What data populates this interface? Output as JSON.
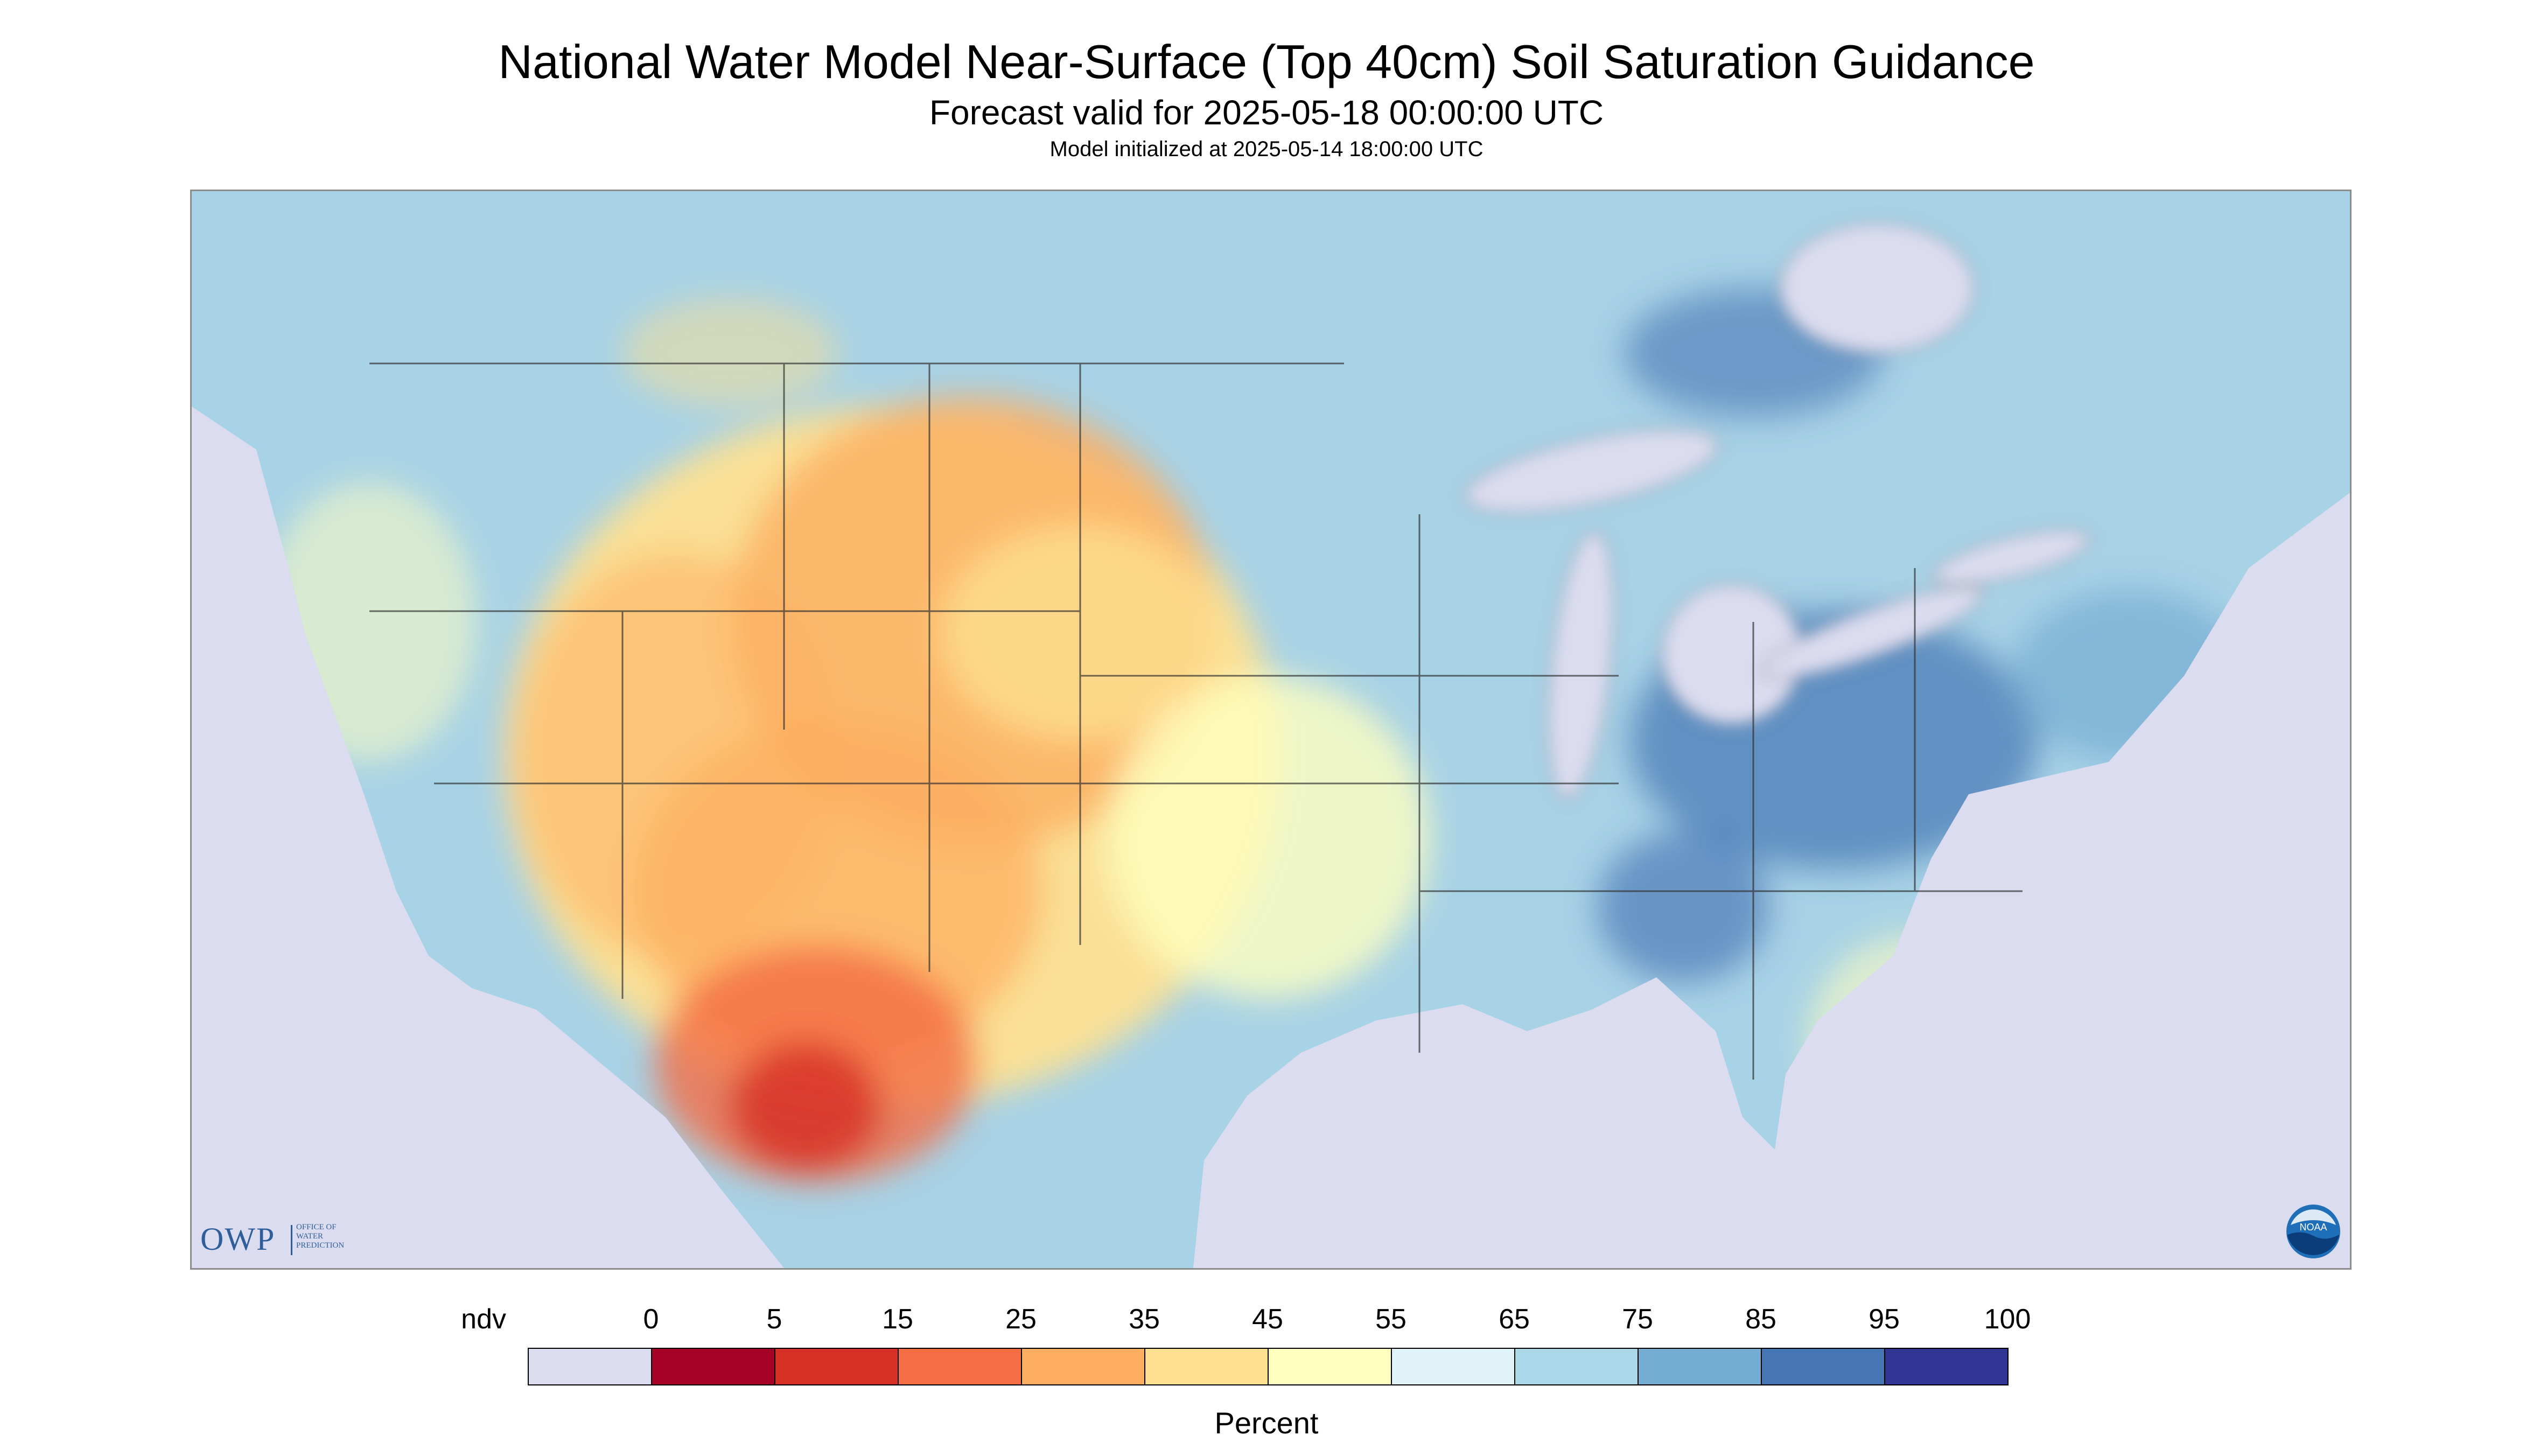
{
  "title": "National Water Model Near-Surface (Top 40cm) Soil Saturation Guidance",
  "subtitle": "Forecast valid for 2025-05-18 00:00:00 UTC",
  "init_line": "Model initialized at 2025-05-14 18:00:00 UTC",
  "logos": {
    "owp_letters": "OWP",
    "owp_sub": [
      "Office of",
      "Water",
      "Prediction"
    ],
    "noaa_text": "NOAA"
  },
  "colors": {
    "ndv": "#dcdcf0",
    "bins": [
      "#a50026",
      "#d73027",
      "#f46d43",
      "#fdae61",
      "#fee090",
      "#ffffbf",
      "#e0f3f8",
      "#abd9e9",
      "#74add1",
      "#4575b4",
      "#313695"
    ],
    "land_base": "#a8d2e6",
    "water": "#dcdcf0",
    "boundary": "#303030"
  },
  "colorbar": {
    "labels": [
      "ndv",
      "0",
      "5",
      "15",
      "25",
      "35",
      "45",
      "55",
      "65",
      "75",
      "85",
      "95",
      "100"
    ],
    "unit": "Percent"
  }
}
